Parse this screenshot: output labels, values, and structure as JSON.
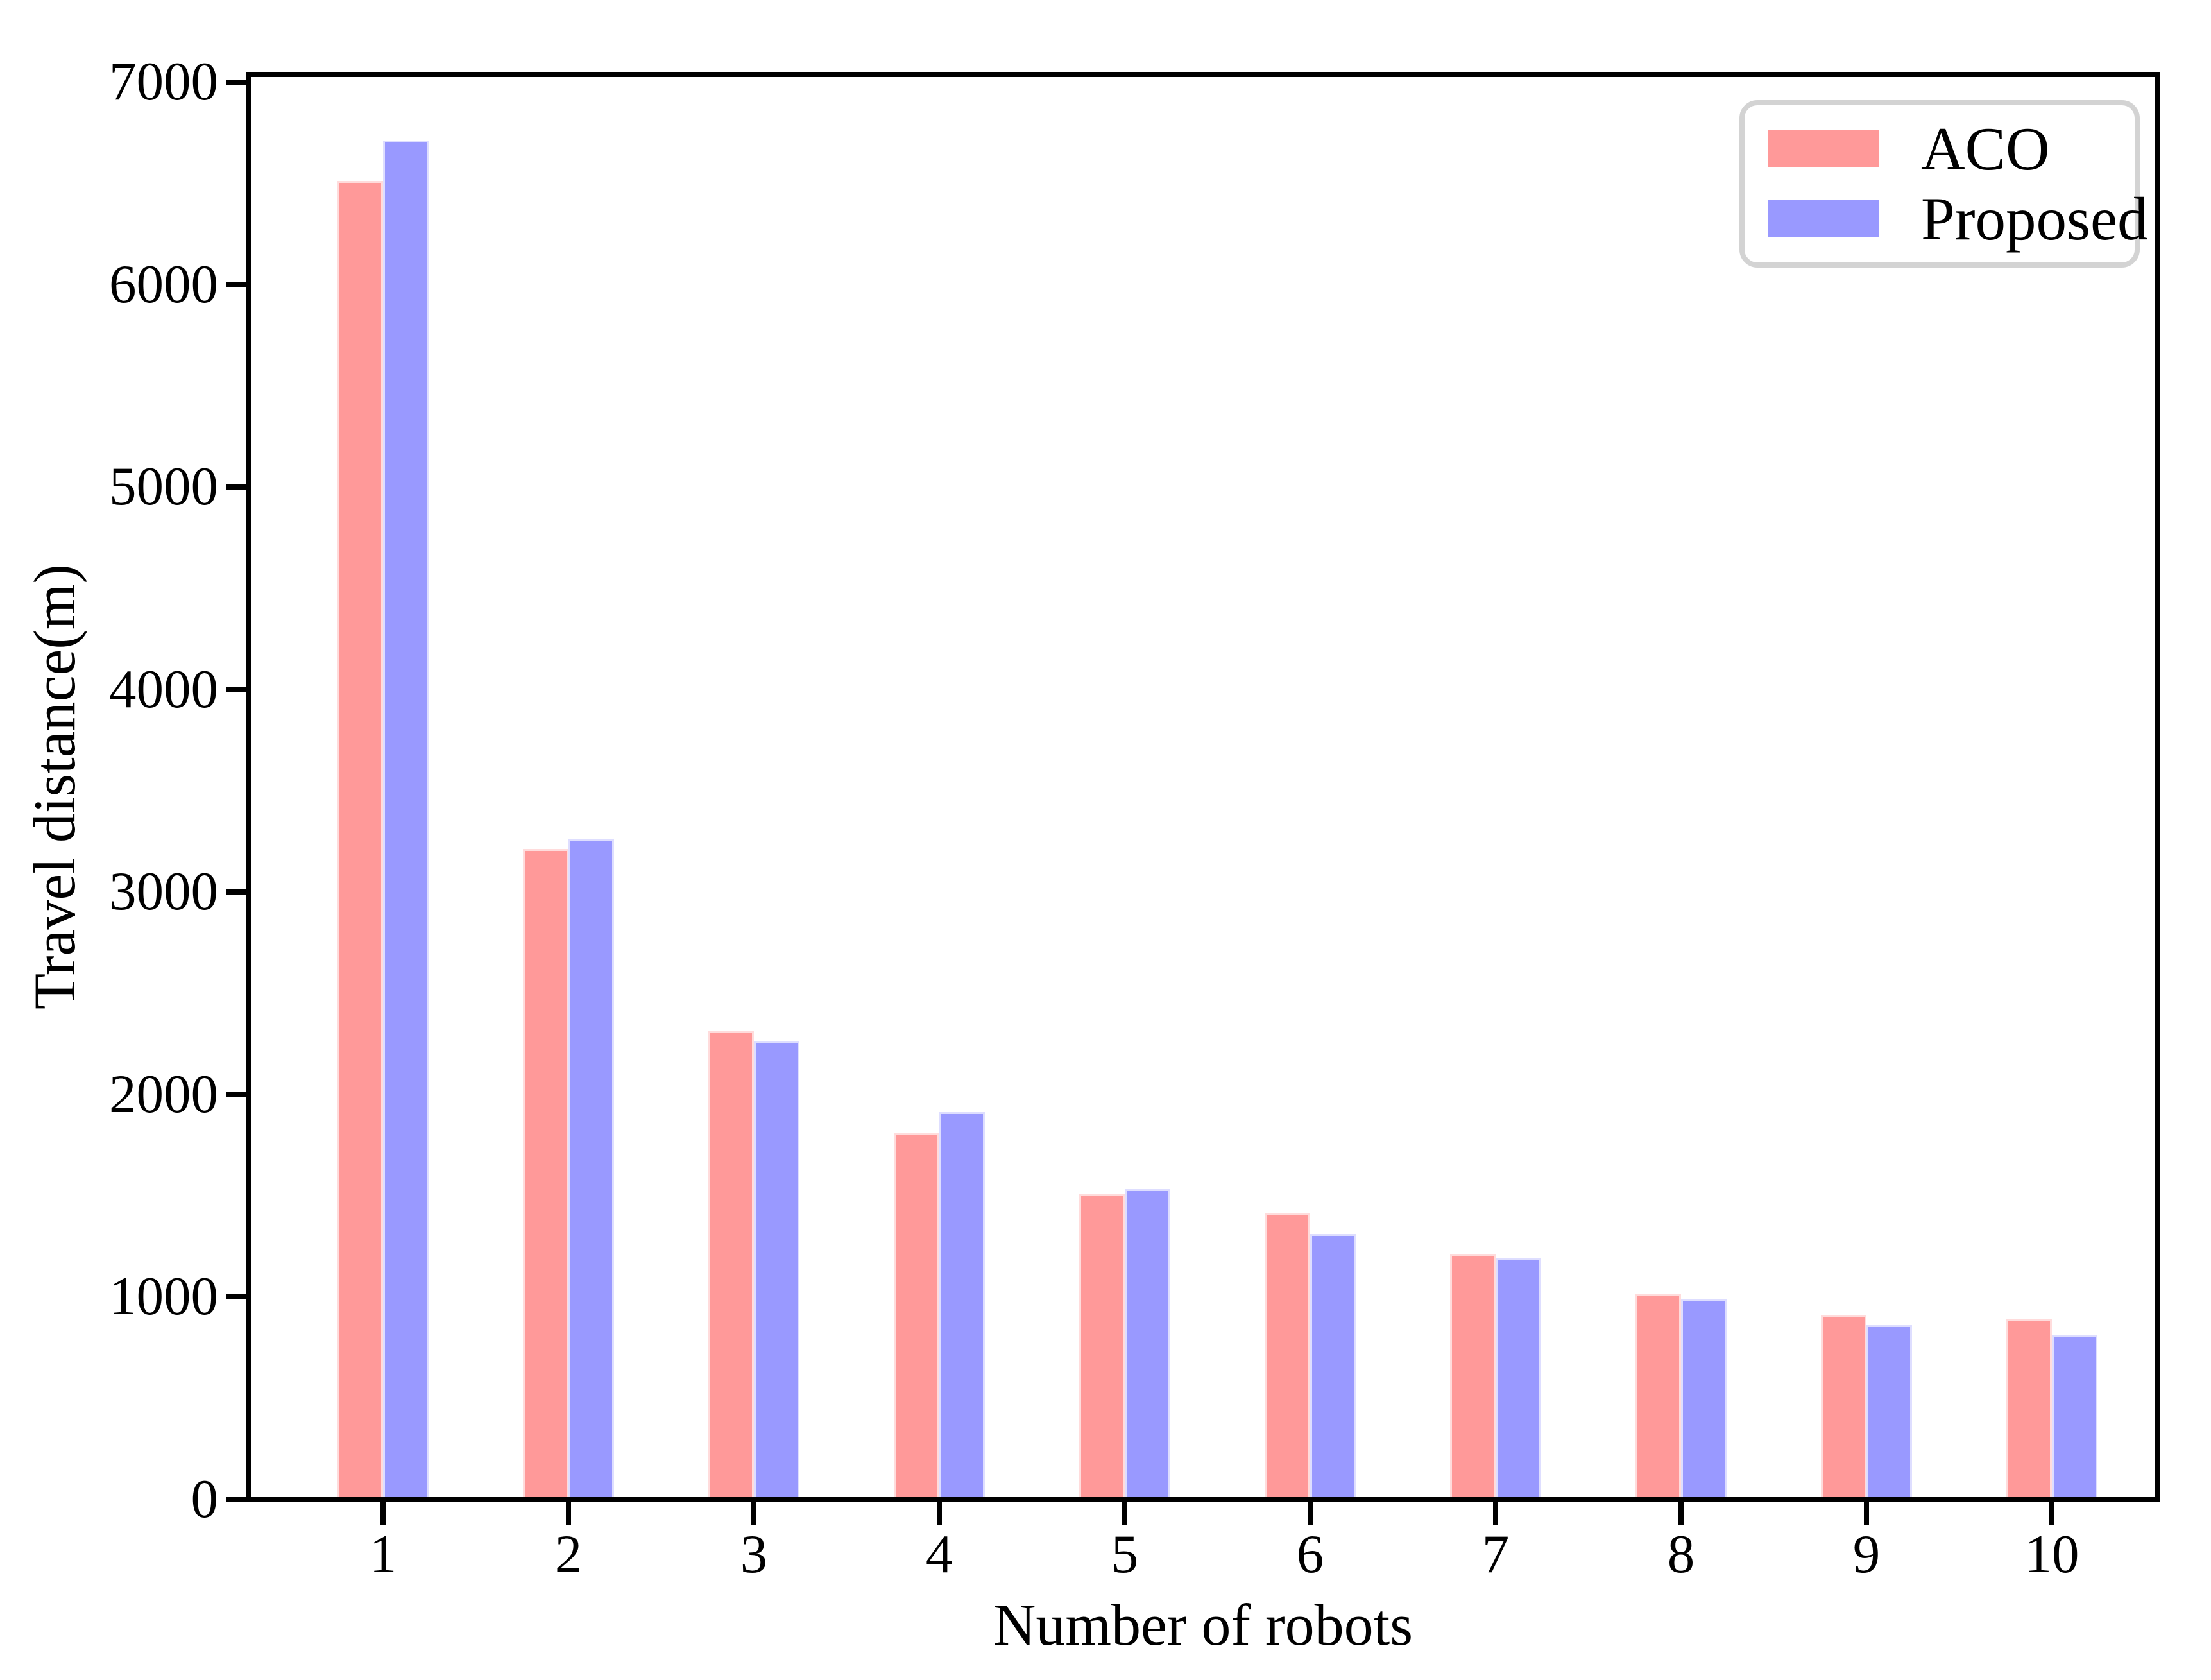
{
  "figure": {
    "xlabel": "Number of robots",
    "ylabel": "Travel distance(m)"
  },
  "legend": {
    "items": [
      {
        "label": "ACO",
        "color": "#ff9999"
      },
      {
        "label": "Proposed",
        "color": "#9999ff"
      }
    ]
  },
  "chart_data": {
    "type": "bar",
    "categories": [
      "1",
      "2",
      "3",
      "4",
      "5",
      "6",
      "7",
      "8",
      "9",
      "10"
    ],
    "series": [
      {
        "name": "ACO",
        "color": "#ff9999",
        "edge_color": "#ffdcdc",
        "values": [
          6500,
          3200,
          2300,
          1800,
          1500,
          1400,
          1200,
          1000,
          900,
          880
        ]
      },
      {
        "name": "Proposed",
        "color": "#9999ff",
        "edge_color": "#dedeff",
        "values": [
          6700,
          3250,
          2250,
          1900,
          1520,
          1300,
          1180,
          980,
          850,
          800
        ]
      }
    ],
    "title": "",
    "xlabel": "Number of robots",
    "ylabel": "Travel distance(m)",
    "ylim": [
      0,
      7040
    ],
    "yticks": [
      0,
      1000,
      2000,
      3000,
      4000,
      5000,
      6000,
      7000
    ],
    "xticks": [
      1,
      2,
      3,
      4,
      5,
      6,
      7,
      8,
      9,
      10
    ],
    "grid": false,
    "legend_position": "upper right",
    "axis_color": "#000000",
    "background_color": "#ffffff"
  }
}
